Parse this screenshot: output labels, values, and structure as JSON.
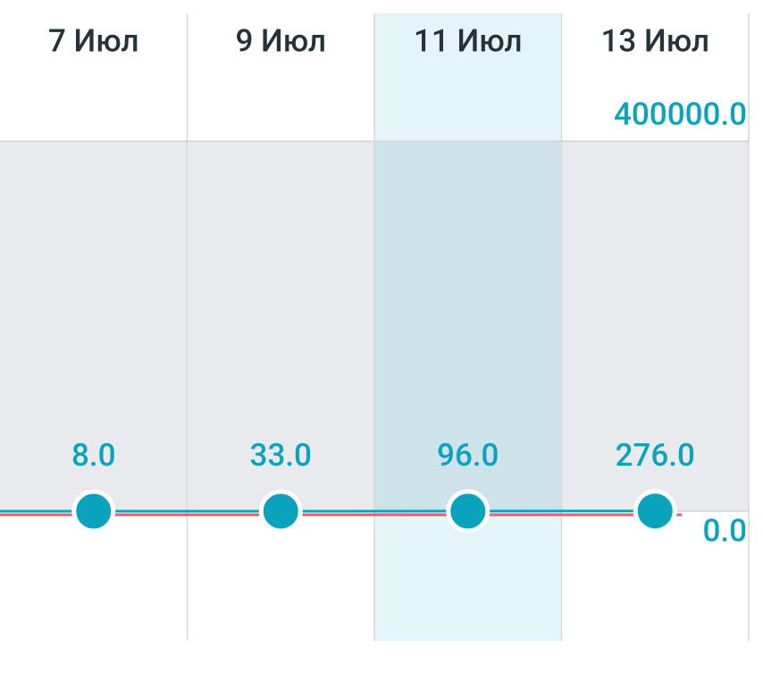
{
  "chart_data": {
    "type": "line",
    "categories": [
      "7 Июл",
      "9 Июл",
      "11 Июл",
      "13 Июл"
    ],
    "values": [
      8.0,
      33.0,
      96.0,
      276.0
    ],
    "value_labels": [
      "8.0",
      "33.0",
      "96.0",
      "276.0"
    ],
    "color": "#0aa3bd",
    "ylim": [
      0,
      400000
    ],
    "yticks": [
      {
        "value": 0,
        "label": "0.0"
      },
      {
        "value": 400000,
        "label": "400000.0"
      }
    ],
    "highlight_index": 2
  }
}
